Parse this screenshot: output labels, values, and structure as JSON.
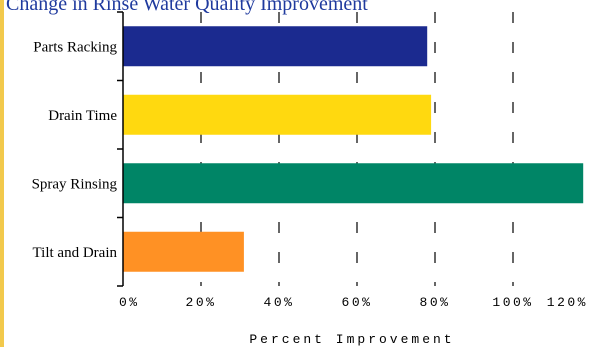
{
  "chart_data": {
    "type": "bar",
    "orientation": "horizontal",
    "title": "Change in Rinse Water Quality Improvement",
    "categories": [
      "Parts Racking",
      "Drain Time",
      "Spray Rinsing",
      "Tilt and Drain"
    ],
    "values": [
      78,
      79,
      118,
      31
    ],
    "colors": [
      "#1b2a8f",
      "#ffd90f",
      "#008566",
      "#ff9124"
    ],
    "xlabel": "Percent Improvement",
    "xlim": [
      0,
      120
    ],
    "ticks": [
      0,
      20,
      40,
      60,
      80,
      100,
      120
    ],
    "tick_labels": [
      "0%",
      "20%",
      "40%",
      "60%",
      "80%",
      "100%",
      "120%"
    ],
    "grid": "dashed-vertical",
    "title_color": "#1f3a9e"
  }
}
